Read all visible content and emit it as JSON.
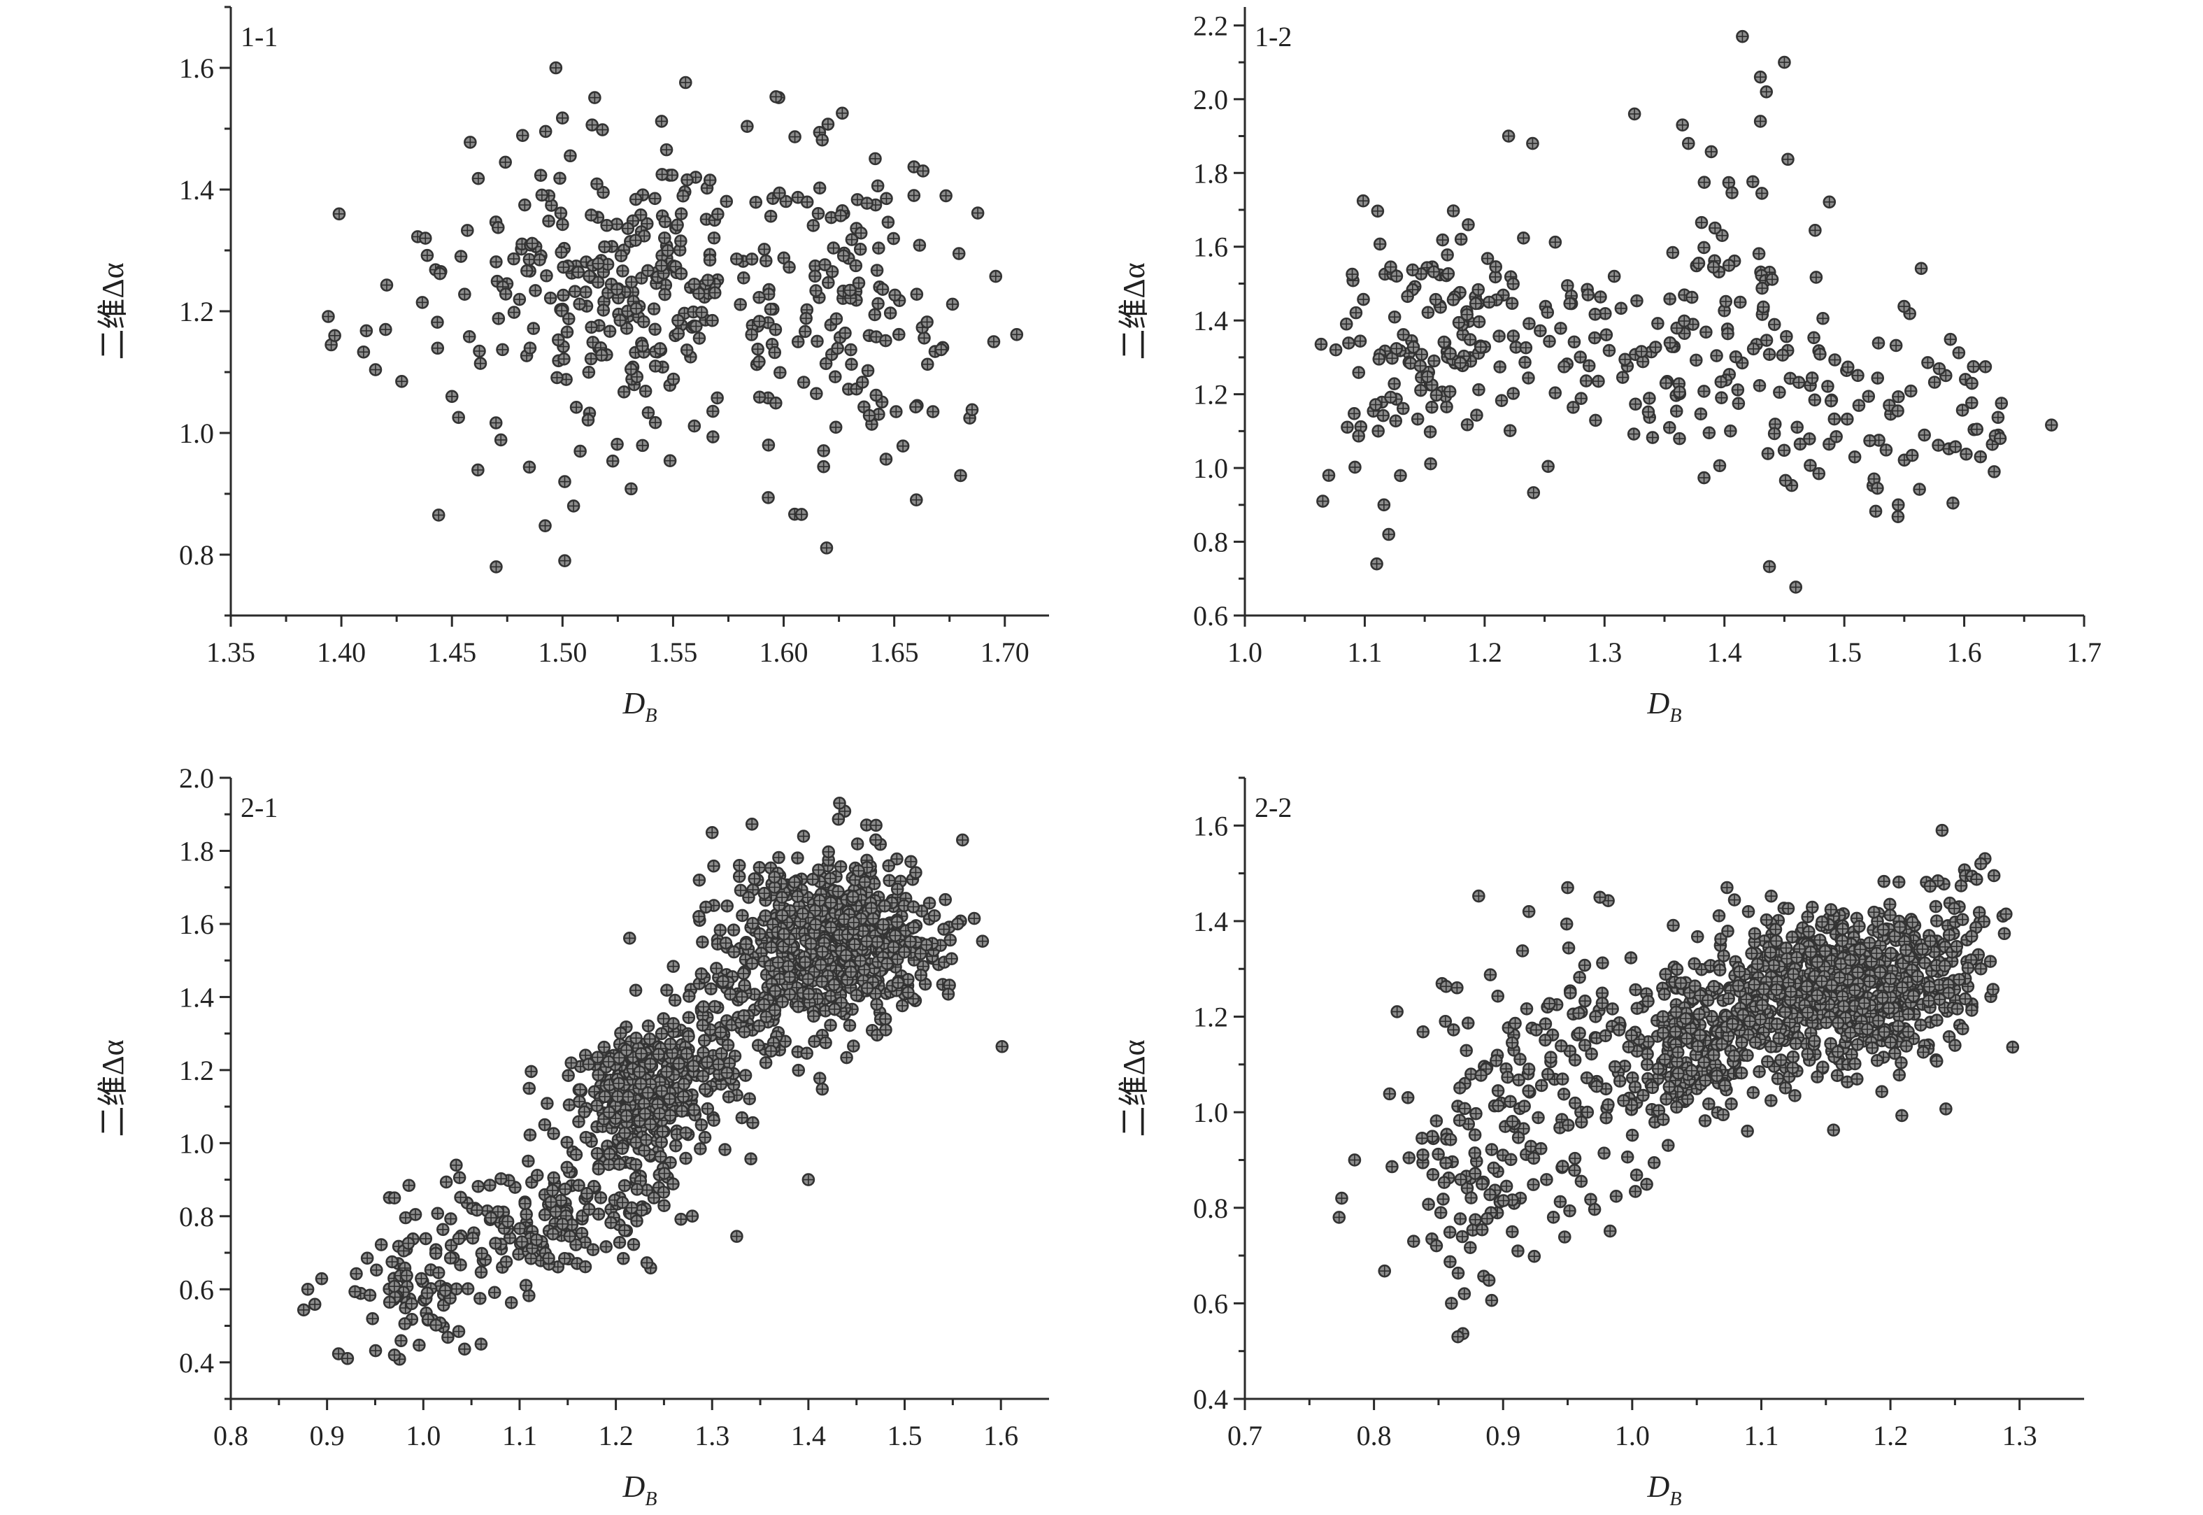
{
  "chart_data": [
    {
      "type": "scatter",
      "panel_label": "1-1",
      "xlabel": "D",
      "xlabel_sub": "B",
      "ylabel": "二维Δα",
      "xlim": [
        1.35,
        1.72
      ],
      "ylim": [
        0.7,
        1.7
      ],
      "x_ticks": [
        "1.35",
        "1.40",
        "1.45",
        "1.50",
        "1.55",
        "1.60",
        "1.65",
        "1.70"
      ],
      "y_ticks": [
        "0.8",
        "1.0",
        "1.2",
        "1.4",
        "1.6"
      ],
      "clusters": [
        {
          "cx": 1.535,
          "cy": 1.22,
          "sx": 0.025,
          "sy": 0.1,
          "n": 130
        },
        {
          "cx": 1.58,
          "cy": 1.22,
          "sx": 0.045,
          "sy": 0.13,
          "n": 130
        },
        {
          "cx": 1.64,
          "cy": 1.22,
          "sx": 0.03,
          "sy": 0.13,
          "n": 80
        },
        {
          "cx": 1.49,
          "cy": 1.3,
          "sx": 0.02,
          "sy": 0.12,
          "n": 60
        },
        {
          "cx": 1.45,
          "cy": 1.2,
          "sx": 0.025,
          "sy": 0.1,
          "n": 22
        }
      ],
      "points": [
        {
          "x": 1.399,
          "y": 1.36
        },
        {
          "x": 1.397,
          "y": 1.16
        },
        {
          "x": 1.42,
          "y": 1.17
        },
        {
          "x": 1.438,
          "y": 1.32
        },
        {
          "x": 1.444,
          "y": 0.865
        },
        {
          "x": 1.47,
          "y": 0.78
        },
        {
          "x": 1.497,
          "y": 1.6
        },
        {
          "x": 1.501,
          "y": 0.79
        },
        {
          "x": 1.501,
          "y": 0.92
        },
        {
          "x": 1.508,
          "y": 0.97
        },
        {
          "x": 1.66,
          "y": 0.89
        },
        {
          "x": 1.68,
          "y": 0.93
        },
        {
          "x": 1.695,
          "y": 1.15
        },
        {
          "x": 1.45,
          "y": 1.06
        },
        {
          "x": 1.505,
          "y": 0.88
        }
      ]
    },
    {
      "type": "scatter",
      "panel_label": "1-2",
      "xlabel": "D",
      "xlabel_sub": "B",
      "ylabel": "二维Δα",
      "xlim": [
        1.0,
        1.7
      ],
      "ylim": [
        0.6,
        2.25
      ],
      "x_ticks": [
        "1.0",
        "1.1",
        "1.2",
        "1.3",
        "1.4",
        "1.5",
        "1.6",
        "1.7"
      ],
      "y_ticks": [
        "0.6",
        "0.8",
        "1.0",
        "1.2",
        "1.4",
        "1.6",
        "1.8",
        "2.0",
        "2.2"
      ],
      "clusters": [
        {
          "cx": 1.18,
          "cy": 1.4,
          "sx": 0.04,
          "sy": 0.13,
          "n": 110
        },
        {
          "cx": 1.13,
          "cy": 1.25,
          "sx": 0.03,
          "sy": 0.15,
          "n": 40
        },
        {
          "cx": 1.4,
          "cy": 1.4,
          "sx": 0.045,
          "sy": 0.22,
          "n": 90
        },
        {
          "cx": 1.3,
          "cy": 1.3,
          "sx": 0.04,
          "sy": 0.15,
          "n": 40
        },
        {
          "cx": 1.52,
          "cy": 1.15,
          "sx": 0.05,
          "sy": 0.17,
          "n": 60
        },
        {
          "cx": 1.61,
          "cy": 1.15,
          "sx": 0.02,
          "sy": 0.1,
          "n": 18
        }
      ],
      "points": [
        {
          "x": 1.065,
          "y": 0.91
        },
        {
          "x": 1.07,
          "y": 0.98
        },
        {
          "x": 1.11,
          "y": 0.74
        },
        {
          "x": 1.12,
          "y": 0.82
        },
        {
          "x": 1.116,
          "y": 0.9
        },
        {
          "x": 1.415,
          "y": 2.17
        },
        {
          "x": 1.45,
          "y": 2.1
        },
        {
          "x": 1.43,
          "y": 2.06
        },
        {
          "x": 1.435,
          "y": 2.02
        },
        {
          "x": 1.325,
          "y": 1.96
        },
        {
          "x": 1.22,
          "y": 1.9
        },
        {
          "x": 1.24,
          "y": 1.88
        },
        {
          "x": 1.365,
          "y": 1.93
        },
        {
          "x": 1.37,
          "y": 1.88
        },
        {
          "x": 1.43,
          "y": 1.94
        },
        {
          "x": 1.63,
          "y": 1.08
        },
        {
          "x": 1.625,
          "y": 0.99
        },
        {
          "x": 1.545,
          "y": 0.9
        }
      ]
    },
    {
      "type": "scatter",
      "panel_label": "2-1",
      "xlabel": "D",
      "xlabel_sub": "B",
      "ylabel": "二维Δα",
      "xlim": [
        0.8,
        1.65
      ],
      "ylim": [
        0.3,
        2.0
      ],
      "x_ticks": [
        "0.8",
        "0.9",
        "1.0",
        "1.1",
        "1.2",
        "1.3",
        "1.4",
        "1.5",
        "1.6"
      ],
      "y_ticks": [
        "0.4",
        "0.6",
        "0.8",
        "1.0",
        "1.2",
        "1.4",
        "1.6",
        "1.8",
        "2.0"
      ],
      "clusters": [
        {
          "cx": 1.44,
          "cy": 1.55,
          "sx": 0.05,
          "sy": 0.12,
          "n": 520
        },
        {
          "cx": 1.36,
          "cy": 1.45,
          "sx": 0.035,
          "sy": 0.15,
          "n": 120
        },
        {
          "cx": 1.23,
          "cy": 1.15,
          "sx": 0.035,
          "sy": 0.08,
          "n": 260
        },
        {
          "cx": 1.2,
          "cy": 0.95,
          "sx": 0.04,
          "sy": 0.12,
          "n": 120
        },
        {
          "cx": 1.1,
          "cy": 0.78,
          "sx": 0.05,
          "sy": 0.08,
          "n": 110
        },
        {
          "cx": 0.98,
          "cy": 0.6,
          "sx": 0.04,
          "sy": 0.08,
          "n": 80
        },
        {
          "cx": 1.3,
          "cy": 1.3,
          "sx": 0.04,
          "sy": 0.2,
          "n": 90
        }
      ],
      "points": [
        {
          "x": 0.88,
          "y": 0.6
        },
        {
          "x": 0.97,
          "y": 0.85
        },
        {
          "x": 0.97,
          "y": 0.42
        },
        {
          "x": 1.06,
          "y": 0.45
        },
        {
          "x": 1.4,
          "y": 0.9
        },
        {
          "x": 1.11,
          "y": 1.15
        },
        {
          "x": 1.3,
          "y": 1.85
        },
        {
          "x": 1.555,
          "y": 1.6
        },
        {
          "x": 1.47,
          "y": 1.83
        },
        {
          "x": 1.395,
          "y": 1.84
        }
      ]
    },
    {
      "type": "scatter",
      "panel_label": "2-2",
      "xlabel": "D",
      "xlabel_sub": "B",
      "ylabel": "二维Δα",
      "xlim": [
        0.7,
        1.35
      ],
      "ylim": [
        0.4,
        1.7
      ],
      "x_ticks": [
        "0.7",
        "0.8",
        "0.9",
        "1.0",
        "1.1",
        "1.2",
        "1.3"
      ],
      "y_ticks": [
        "0.4",
        "0.6",
        "0.8",
        "1.0",
        "1.2",
        "1.4",
        "1.6"
      ],
      "clusters": [
        {
          "cx": 1.17,
          "cy": 1.28,
          "sx": 0.04,
          "sy": 0.07,
          "n": 520
        },
        {
          "cx": 1.12,
          "cy": 1.22,
          "sx": 0.05,
          "sy": 0.09,
          "n": 260
        },
        {
          "cx": 1.05,
          "cy": 1.15,
          "sx": 0.03,
          "sy": 0.08,
          "n": 200
        },
        {
          "cx": 0.93,
          "cy": 1.05,
          "sx": 0.04,
          "sy": 0.16,
          "n": 150
        },
        {
          "cx": 0.87,
          "cy": 0.85,
          "sx": 0.025,
          "sy": 0.12,
          "n": 60
        },
        {
          "cx": 1.24,
          "cy": 1.35,
          "sx": 0.02,
          "sy": 0.1,
          "n": 60
        }
      ],
      "points": [
        {
          "x": 0.773,
          "y": 0.78
        },
        {
          "x": 0.775,
          "y": 0.82
        },
        {
          "x": 0.785,
          "y": 0.9
        },
        {
          "x": 0.865,
          "y": 0.53
        },
        {
          "x": 0.86,
          "y": 0.6
        },
        {
          "x": 0.87,
          "y": 0.62
        },
        {
          "x": 1.24,
          "y": 1.59
        },
        {
          "x": 1.27,
          "y": 1.52
        },
        {
          "x": 1.27,
          "y": 1.3
        },
        {
          "x": 1.25,
          "y": 1.14
        },
        {
          "x": 1.09,
          "y": 1.42
        },
        {
          "x": 0.95,
          "y": 1.47
        },
        {
          "x": 0.975,
          "y": 1.45
        },
        {
          "x": 0.92,
          "y": 1.42
        }
      ]
    }
  ]
}
